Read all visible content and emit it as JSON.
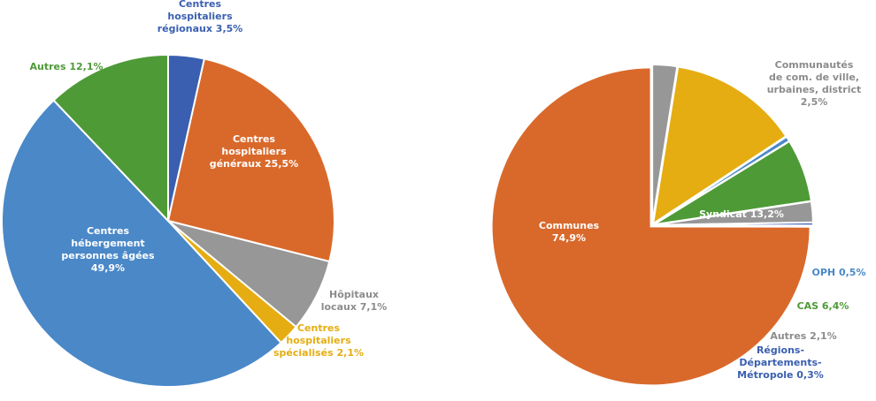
{
  "chart_data": [
    {
      "type": "pie",
      "title": "",
      "slices": [
        {
          "label": "Centres hospitaliers régionaux 3,5%",
          "value": 3.5,
          "color": "#3a5fb0"
        },
        {
          "label": "Centres hospitaliers généraux 25,5%",
          "value": 25.5,
          "color": "#d9692b"
        },
        {
          "label": "Hôpitaux locaux 7,1%",
          "value": 7.1,
          "color": "#979797"
        },
        {
          "label": "Centres hospitaliers spécialisés 2,1%",
          "value": 2.1,
          "color": "#e5ad12"
        },
        {
          "label": "Centres hébergement personnes âgées 49,9%",
          "value": 49.9,
          "color": "#4a88c8"
        },
        {
          "label": "Autres 12,1%",
          "value": 12.1,
          "color": "#4e9a37"
        }
      ]
    },
    {
      "type": "pie",
      "title": "",
      "slices": [
        {
          "label": "Communautés de com. de ville, urbaines, district 2,5%",
          "value": 2.5,
          "color": "#979797"
        },
        {
          "label": "Syndicat 13,2%",
          "value": 13.2,
          "color": "#e5ad12"
        },
        {
          "label": "OPH 0,5%",
          "value": 0.5,
          "color": "#4a88c8"
        },
        {
          "label": "CAS 6,4%",
          "value": 6.4,
          "color": "#4e9a37"
        },
        {
          "label": "Autres 2,1%",
          "value": 2.1,
          "color": "#979797"
        },
        {
          "label": "Régions-Départements-Métropole 0,3%",
          "value": 0.3,
          "color": "#3a5fb0"
        },
        {
          "label": "Communes 74,9%",
          "value": 74.9,
          "color": "#d9692b"
        }
      ]
    }
  ]
}
